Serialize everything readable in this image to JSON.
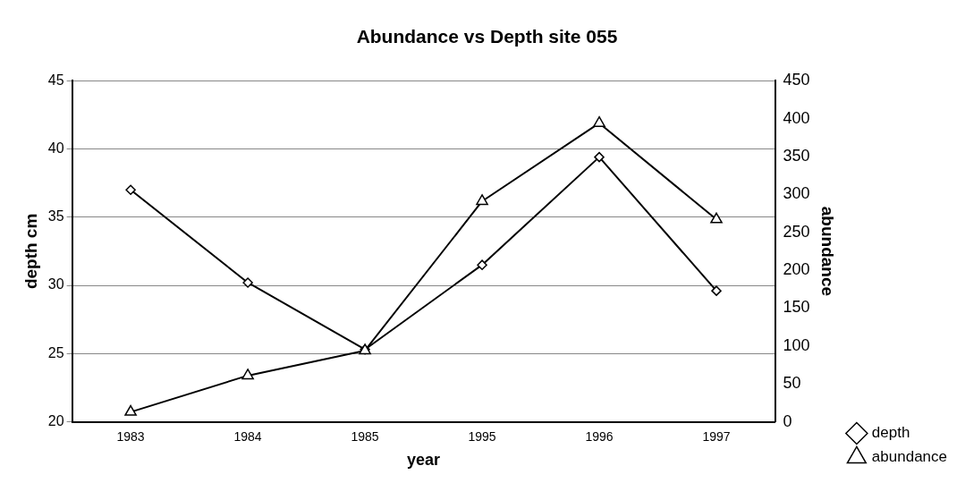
{
  "chart_data": {
    "type": "line",
    "title": "Abundance vs Depth site 055",
    "xlabel": "year",
    "ylabel": "depth cm",
    "y2label": "abundance",
    "categories": [
      "1983",
      "1984",
      "1985",
      "1995",
      "1996",
      "1997"
    ],
    "series": [
      {
        "name": "depth",
        "color": "#000000",
        "marker": "diamond",
        "values": [
          37,
          30.2,
          25.3,
          31.5,
          39.4,
          29.6
        ]
      },
      {
        "name": "abundance",
        "color": "#000000",
        "marker": "triangle",
        "axis": "y2",
        "values": [
          13,
          61,
          94,
          291,
          394,
          267
        ]
      }
    ],
    "ylim": [
      20,
      45
    ],
    "yticks": [
      20,
      25,
      30,
      35,
      40,
      45
    ],
    "y2lim": [
      0,
      450
    ],
    "y2ticks": [
      0,
      50,
      100,
      150,
      200,
      250,
      300,
      350,
      400,
      450
    ],
    "grid": "y",
    "legend": "bottom right",
    "line_style": "solid"
  }
}
